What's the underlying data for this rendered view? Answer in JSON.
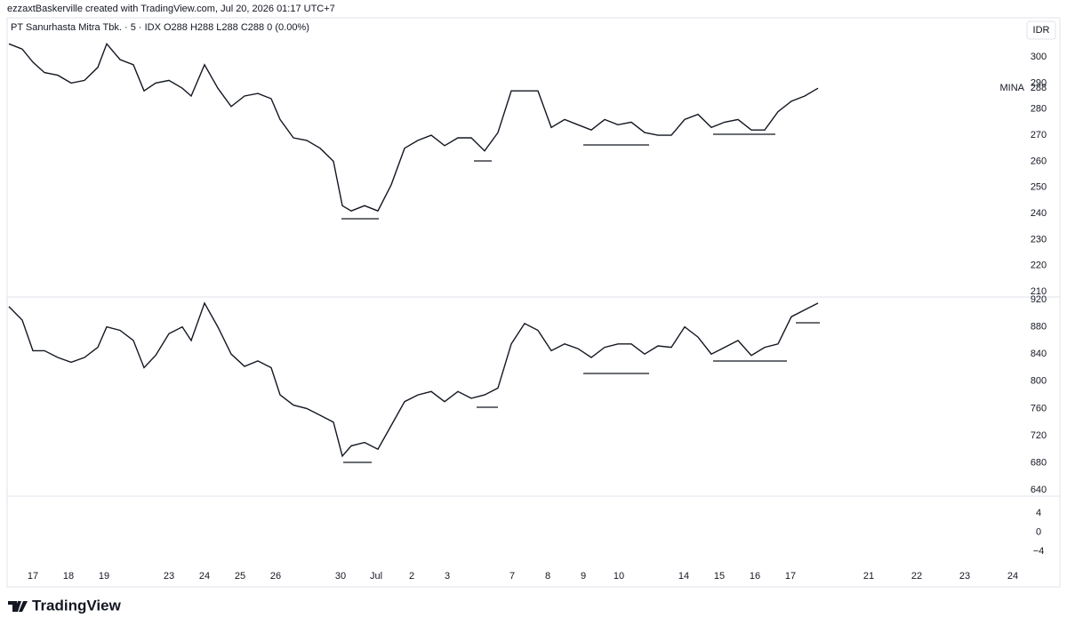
{
  "header": "ezzaxtBaskerville created with TradingView.com, Jul 20, 2026 01:17 UTC+7",
  "footer": "TradingView",
  "chart_data": [
    {
      "type": "line",
      "subtitle": "PT Sanurhasta Mitra Tbk. · 5 · IDX  O288  H288  L288  C288  0 (0.00%)",
      "currency": "IDR",
      "last_label": {
        "name": "MINA",
        "value": 288
      },
      "xlim": [
        -0.725,
        27.825
      ],
      "ylim": [
        208,
        315
      ],
      "yticks": [
        210,
        220,
        230,
        240,
        250,
        260,
        270,
        280,
        290,
        300
      ],
      "grid": false,
      "x": [
        -0.675,
        -0.3,
        0,
        0.325,
        0.7,
        1.075,
        1.45,
        1.825,
        2.075,
        2.45,
        2.825,
        3.125,
        3.45,
        3.825,
        4.2,
        4.45,
        4.825,
        5.2,
        5.575,
        5.95,
        6.325,
        6.7,
        6.95,
        7.325,
        7.7,
        8.075,
        8.45,
        8.7,
        8.95,
        9.325,
        9.7,
        10.075,
        10.45,
        10.825,
        11.2,
        11.575,
        11.95,
        12.325,
        12.7,
        13.075,
        13.45,
        13.825,
        14.2,
        14.575,
        14.95,
        15.325,
        15.7,
        16.075,
        16.45,
        16.825,
        17.2,
        17.575,
        17.95,
        18.325,
        18.7,
        19.075,
        19.45,
        19.825,
        20.2,
        20.575,
        20.95,
        21.325,
        21.7,
        22.075
      ],
      "series": [
        {
          "color": "#131722",
          "values": [
            305,
            303,
            298,
            294,
            293,
            290,
            291,
            296,
            305,
            299,
            297,
            287,
            290,
            291,
            288,
            285,
            297,
            288,
            281,
            285,
            286,
            284,
            276,
            269,
            268,
            265,
            260,
            243,
            241,
            243,
            241,
            251,
            265,
            268,
            270,
            266,
            269,
            269,
            264,
            271,
            287,
            287,
            287,
            273,
            276,
            274,
            272,
            276,
            274,
            275,
            271,
            270,
            270,
            276,
            278,
            273,
            275,
            276,
            272,
            272,
            279,
            283,
            285,
            288
          ]
        }
      ]
    },
    {
      "type": "line",
      "xlim": [
        -0.725,
        27.825
      ],
      "ylim": [
        631,
        924
      ],
      "yticks": [
        640,
        680,
        720,
        760,
        800,
        840,
        880,
        920
      ],
      "grid": false,
      "x": [
        -0.675,
        -0.3,
        0,
        0.325,
        0.7,
        1.075,
        1.45,
        1.825,
        2.075,
        2.45,
        2.825,
        3.125,
        3.45,
        3.825,
        4.2,
        4.45,
        4.825,
        5.2,
        5.575,
        5.95,
        6.325,
        6.7,
        6.95,
        7.325,
        7.7,
        8.075,
        8.45,
        8.7,
        8.95,
        9.325,
        9.7,
        10.075,
        10.45,
        10.825,
        11.2,
        11.575,
        11.95,
        12.325,
        12.7,
        13.075,
        13.45,
        13.825,
        14.2,
        14.575,
        14.95,
        15.325,
        15.7,
        16.075,
        16.45,
        16.825,
        17.2,
        17.575,
        17.95,
        18.325,
        18.7,
        19.075,
        19.45,
        19.825,
        20.2,
        20.575,
        20.95,
        21.325,
        21.7,
        22.075
      ],
      "series": [
        {
          "color": "#131722",
          "values": [
            910,
            890,
            845,
            845,
            835,
            828,
            835,
            850,
            880,
            875,
            860,
            820,
            838,
            870,
            880,
            860,
            915,
            880,
            840,
            822,
            830,
            820,
            780,
            765,
            760,
            750,
            740,
            690,
            705,
            710,
            700,
            735,
            770,
            780,
            785,
            770,
            785,
            775,
            780,
            790,
            855,
            885,
            875,
            845,
            855,
            848,
            835,
            850,
            855,
            855,
            840,
            852,
            850,
            880,
            865,
            840,
            850,
            860,
            838,
            850,
            855,
            895,
            905,
            915
          ]
        }
      ]
    },
    {
      "type": "line",
      "xlim": [
        -0.725,
        27.825
      ],
      "ylim": [
        -6.2,
        7.5
      ],
      "yticks": [
        {
          "value": -4,
          "label": "−4"
        },
        0,
        4
      ],
      "grid": false,
      "xticks": [
        {
          "value": 0,
          "label": "17"
        },
        {
          "value": 1,
          "label": "18"
        },
        {
          "value": 2,
          "label": "19"
        },
        {
          "value": 3.825,
          "label": "23"
        },
        {
          "value": 4.825,
          "label": "24"
        },
        {
          "value": 5.825,
          "label": "25"
        },
        {
          "value": 6.825,
          "label": "26"
        },
        {
          "value": 8.65,
          "label": "30"
        },
        {
          "value": 9.65,
          "label": "Jul"
        },
        {
          "value": 10.65,
          "label": "2"
        },
        {
          "value": 11.65,
          "label": "3"
        },
        {
          "value": 13.475,
          "label": "7"
        },
        {
          "value": 14.475,
          "label": "8"
        },
        {
          "value": 15.475,
          "label": "9"
        },
        {
          "value": 16.475,
          "label": "10"
        },
        {
          "value": 18.3,
          "label": "14"
        },
        {
          "value": 19.3,
          "label": "15"
        },
        {
          "value": 20.3,
          "label": "16"
        },
        {
          "value": 21.3,
          "label": "17"
        },
        {
          "value": 23.5,
          "label": "21"
        },
        {
          "value": 24.85,
          "label": "22"
        },
        {
          "value": 26.2,
          "label": "23"
        },
        {
          "value": 27.55,
          "label": "24"
        }
      ],
      "series": []
    }
  ]
}
